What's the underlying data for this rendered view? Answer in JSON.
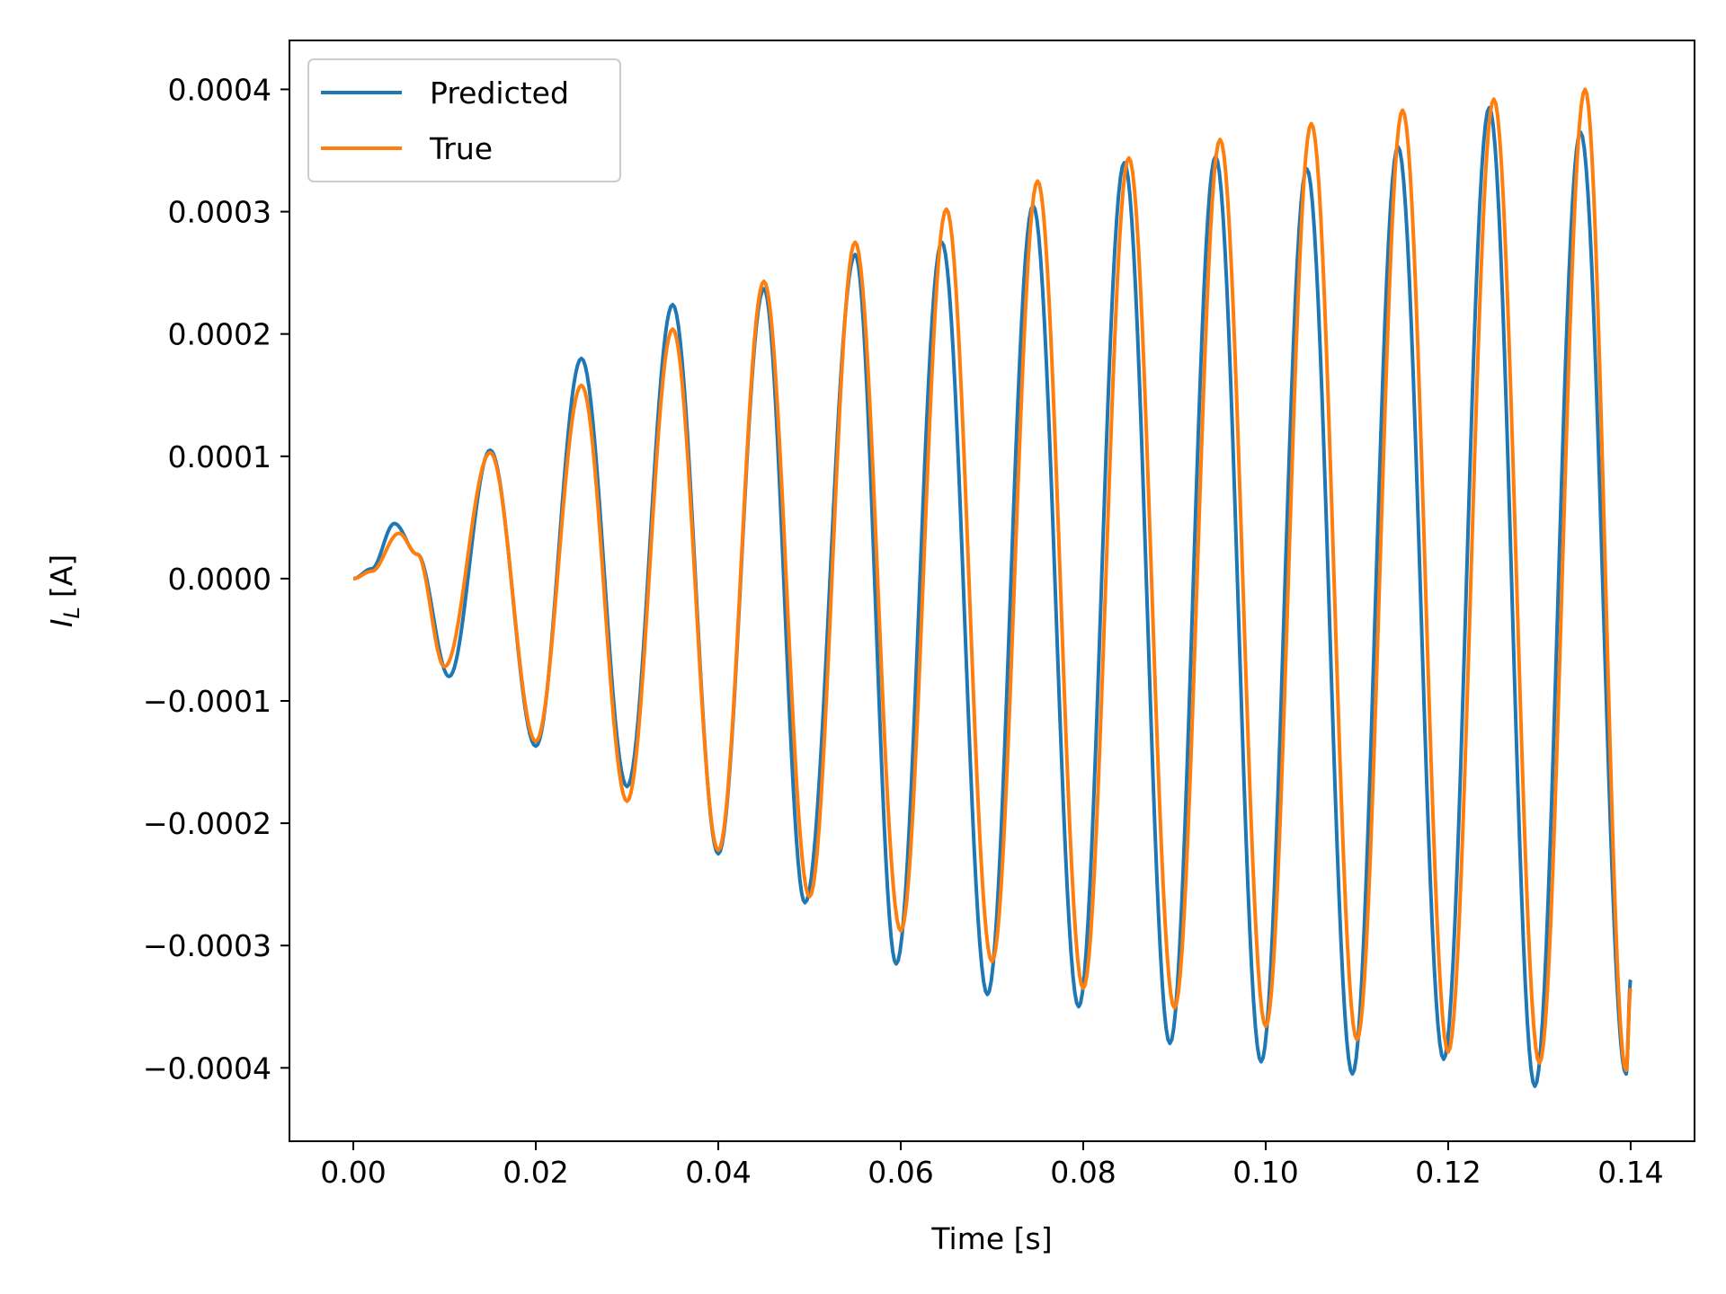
{
  "chart_data": {
    "type": "line",
    "xlabel": "Time [s]",
    "ylabel_main": "I",
    "ylabel_sub": "L",
    "ylabel_unit": "[A]",
    "xlim": [
      -0.007,
      0.147
    ],
    "ylim": [
      -0.00046,
      0.00044
    ],
    "x_ticks": [
      0.0,
      0.02,
      0.04,
      0.06,
      0.08,
      0.1,
      0.12,
      0.14
    ],
    "x_tick_labels": [
      "0.00",
      "0.02",
      "0.04",
      "0.06",
      "0.08",
      "0.10",
      "0.12",
      "0.14"
    ],
    "y_ticks": [
      -0.0004,
      -0.0003,
      -0.0002,
      -0.0001,
      0.0,
      0.0001,
      0.0002,
      0.0003,
      0.0004
    ],
    "y_tick_labels": [
      "−0.0004",
      "−0.0003",
      "−0.0002",
      "−0.0001",
      "0.0000",
      "0.0001",
      "0.0002",
      "0.0003",
      "0.0004"
    ],
    "grid": false,
    "legend_position": "top-left",
    "series": [
      {
        "name": "Predicted",
        "color": "#1f77b4",
        "points": [
          [
            0.0,
            0.0
          ],
          [
            0.002,
            8e-06
          ],
          [
            0.0045,
            4.5e-05
          ],
          [
            0.007,
            2e-05
          ],
          [
            0.0105,
            -8e-05
          ],
          [
            0.015,
            0.000105
          ],
          [
            0.02,
            -0.000137
          ],
          [
            0.025,
            0.00018
          ],
          [
            0.03,
            -0.00017
          ],
          [
            0.035,
            0.000224
          ],
          [
            0.04,
            -0.000225
          ],
          [
            0.045,
            0.000237
          ],
          [
            0.0495,
            -0.000265
          ],
          [
            0.055,
            0.000265
          ],
          [
            0.0595,
            -0.000315
          ],
          [
            0.0645,
            0.000275
          ],
          [
            0.0695,
            -0.00034
          ],
          [
            0.0745,
            0.000305
          ],
          [
            0.0795,
            -0.00035
          ],
          [
            0.0845,
            0.00034
          ],
          [
            0.0895,
            -0.00038
          ],
          [
            0.0945,
            0.000345
          ],
          [
            0.0995,
            -0.000395
          ],
          [
            0.1045,
            0.000335
          ],
          [
            0.1095,
            -0.000405
          ],
          [
            0.1145,
            0.000353
          ],
          [
            0.1195,
            -0.000393
          ],
          [
            0.1245,
            0.000385
          ],
          [
            0.1295,
            -0.000415
          ],
          [
            0.1345,
            0.000365
          ],
          [
            0.1395,
            -0.000405
          ],
          [
            0.14,
            -0.000328
          ]
        ]
      },
      {
        "name": "True",
        "color": "#ff7f0e",
        "points": [
          [
            0.0,
            0.0
          ],
          [
            0.002,
            6e-06
          ],
          [
            0.005,
            3.7e-05
          ],
          [
            0.007,
            2e-05
          ],
          [
            0.01,
            -7.2e-05
          ],
          [
            0.015,
            0.000103
          ],
          [
            0.02,
            -0.000133
          ],
          [
            0.025,
            0.000158
          ],
          [
            0.03,
            -0.000182
          ],
          [
            0.035,
            0.000204
          ],
          [
            0.04,
            -0.000222
          ],
          [
            0.045,
            0.000243
          ],
          [
            0.05,
            -0.00026
          ],
          [
            0.055,
            0.000275
          ],
          [
            0.06,
            -0.000288
          ],
          [
            0.065,
            0.000302
          ],
          [
            0.07,
            -0.000313
          ],
          [
            0.075,
            0.000325
          ],
          [
            0.08,
            -0.000335
          ],
          [
            0.085,
            0.000344
          ],
          [
            0.09,
            -0.000351
          ],
          [
            0.095,
            0.000359
          ],
          [
            0.1,
            -0.000366
          ],
          [
            0.105,
            0.000372
          ],
          [
            0.11,
            -0.000377
          ],
          [
            0.115,
            0.000383
          ],
          [
            0.12,
            -0.000387
          ],
          [
            0.125,
            0.000392
          ],
          [
            0.13,
            -0.000396
          ],
          [
            0.135,
            0.0004
          ],
          [
            0.1395,
            -0.000402
          ],
          [
            0.14,
            -0.000335
          ]
        ]
      }
    ]
  }
}
